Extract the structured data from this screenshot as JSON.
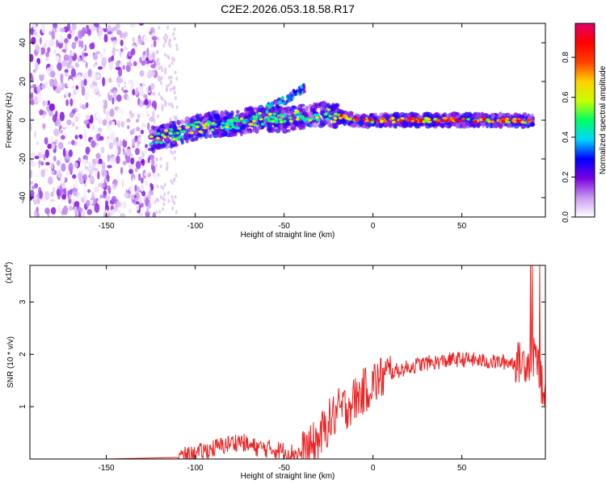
{
  "figure_title": "C2E2.2026.053.18.58.R17",
  "chart_data": [
    {
      "type": "heatmap",
      "xlabel": "Height of straight line (km)",
      "ylabel": "Frequency (Hz)",
      "xlim": [
        -193,
        97
      ],
      "ylim": [
        -50,
        50
      ],
      "xticks": [
        -150,
        -100,
        -50,
        0,
        50
      ],
      "yticks": [
        -40,
        -20,
        0,
        20,
        40
      ],
      "colorbar": {
        "label": "Normalized spectral amplitude",
        "range": [
          0.0,
          0.97
        ],
        "ticks": [
          0.0,
          0.2,
          0.4,
          0.6,
          0.8
        ],
        "colormap": [
          "#ffffff",
          "#c89af0",
          "#7a00e0",
          "#0000ff",
          "#00d8ff",
          "#00ff60",
          "#c8ff00",
          "#ffd000",
          "#ff4000",
          "#ff0000",
          "#e0006a"
        ]
      },
      "features": [
        {
          "region": "noise",
          "x_range": [
            -193,
            -122
          ],
          "y_range": [
            -50,
            50
          ],
          "typical_amplitude": 0.05
        },
        {
          "region": "trace",
          "points": [
            [
              -125,
              -10
            ],
            [
              -110,
              -7
            ],
            [
              -100,
              -4
            ],
            [
              -90,
              -2
            ],
            [
              -80,
              -2
            ],
            [
              -70,
              0
            ],
            [
              -60,
              1
            ],
            [
              -50,
              0
            ],
            [
              -40,
              2
            ],
            [
              -30,
              3
            ],
            [
              -20,
              2
            ],
            [
              -10,
              0
            ],
            [
              0,
              0
            ],
            [
              20,
              0
            ],
            [
              40,
              0
            ],
            [
              60,
              0
            ],
            [
              80,
              0
            ],
            [
              90,
              -1
            ]
          ],
          "typical_amplitude": 0.5
        },
        {
          "region": "branch",
          "points": [
            [
              -60,
              6
            ],
            [
              -50,
              10
            ],
            [
              -42,
              15
            ],
            [
              -38,
              17
            ]
          ],
          "typical_amplitude": 0.35
        }
      ]
    },
    {
      "type": "line",
      "series": [
        {
          "color": "#ee2222"
        }
      ],
      "xlabel": "Height of straight line (km)",
      "ylabel": "SNR (10 * v/v)",
      "y_multiplier": "(x10^4)",
      "xlim": [
        -193,
        97
      ],
      "ylim": [
        0,
        3.7
      ],
      "xticks": [
        -150,
        -100,
        -50,
        0,
        50
      ],
      "yticks": [
        1,
        2,
        3
      ],
      "x": [
        -193,
        -150,
        -110,
        -100,
        -95,
        -90,
        -85,
        -80,
        -75,
        -70,
        -65,
        -60,
        -55,
        -50,
        -45,
        -40,
        -35,
        -30,
        -25,
        -20,
        -15,
        -10,
        -5,
        0,
        5,
        10,
        15,
        20,
        25,
        30,
        35,
        40,
        45,
        50,
        55,
        60,
        65,
        70,
        75,
        80,
        85,
        90,
        92,
        95,
        97
      ],
      "y": [
        0.0,
        0.0,
        0.03,
        0.08,
        0.15,
        0.2,
        0.25,
        0.3,
        0.35,
        0.25,
        0.22,
        0.2,
        0.18,
        0.15,
        0.12,
        0.1,
        0.2,
        0.4,
        0.7,
        0.9,
        1.0,
        1.15,
        1.3,
        1.45,
        1.55,
        1.65,
        1.7,
        1.75,
        1.8,
        1.83,
        1.85,
        1.87,
        1.9,
        1.9,
        1.9,
        1.88,
        1.86,
        1.85,
        1.85,
        1.85,
        1.85,
        1.9,
        2.0,
        1.4,
        1.2
      ]
    }
  ]
}
